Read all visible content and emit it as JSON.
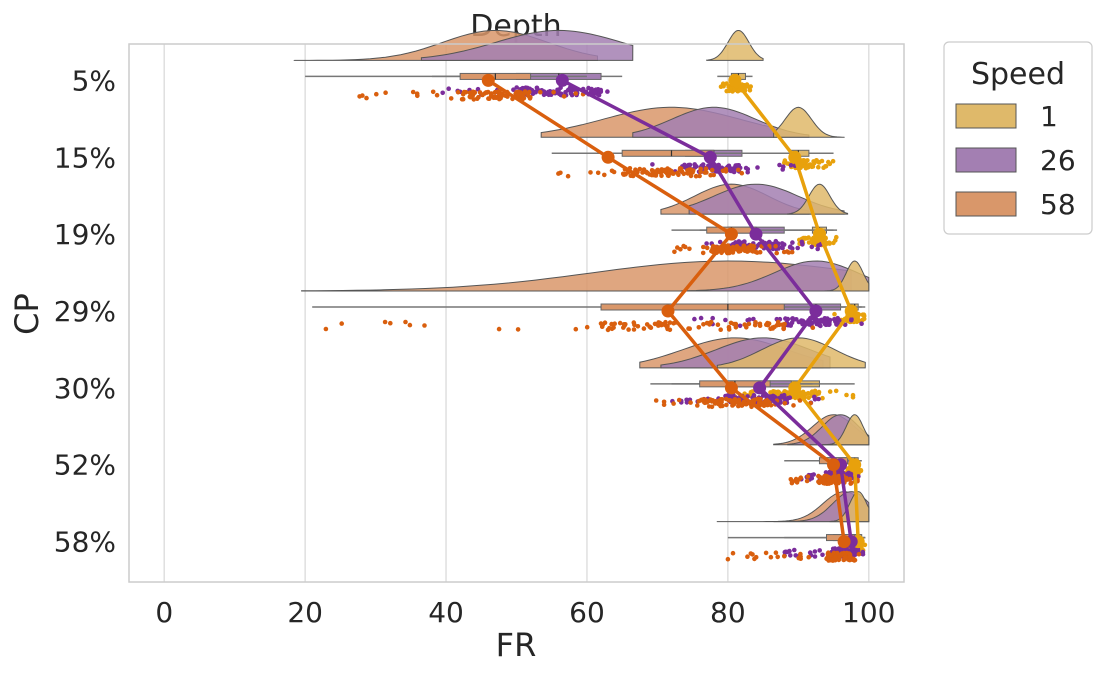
{
  "chart_data": {
    "type": "raincloud",
    "title": "Depth",
    "xlabel": "FR",
    "ylabel": "CP",
    "xlim": [
      -5,
      105
    ],
    "xticks": [
      0,
      20,
      40,
      60,
      80,
      100
    ],
    "categories": [
      "5%",
      "15%",
      "19%",
      "29%",
      "30%",
      "52%",
      "58%"
    ],
    "legend": {
      "title": "Speed",
      "position": "outside-right",
      "entries": [
        "1",
        "26",
        "58"
      ]
    },
    "colors": {
      "1": "#e8a10c",
      "26": "#7b2d9b",
      "58": "#d95f0e",
      "1_fill": "#dfb96a",
      "26_fill": "#a37fb2",
      "58_fill": "#d9976a"
    },
    "series": [
      {
        "name": "1",
        "means": [
          81,
          89.5,
          93,
          97.5,
          89.5,
          98,
          98.5
        ],
        "boxes": [
          [
            78.5,
            80.5,
            81.5,
            82.5,
            83.5
          ],
          [
            88,
            89,
            90,
            91.5,
            95
          ],
          [
            90,
            92,
            93,
            94,
            95.5
          ],
          [
            95,
            97,
            98,
            98.5,
            99.5
          ],
          [
            80,
            86,
            90,
            93,
            98
          ],
          [
            95,
            97,
            98,
            98.5,
            99
          ],
          [
            96,
            98,
            98.5,
            99,
            99.5
          ]
        ]
      },
      {
        "name": "26",
        "means": [
          56.5,
          77.5,
          84,
          92.5,
          84.5,
          96,
          97.5
        ],
        "boxes": [
          [
            38,
            50,
            56,
            62,
            65
          ],
          [
            68,
            74,
            78,
            82,
            90
          ],
          [
            76,
            80,
            84,
            88,
            95
          ],
          [
            75,
            88,
            92.5,
            96,
            99
          ],
          [
            72,
            80,
            85,
            89,
            93
          ],
          [
            90,
            94,
            96,
            97.5,
            99
          ],
          [
            88,
            95,
            97.5,
            98.5,
            99.5
          ]
        ]
      },
      {
        "name": "58",
        "means": [
          46,
          63,
          80.5,
          71.5,
          80.5,
          95,
          96.5
        ],
        "boxes": [
          [
            20,
            42,
            47,
            52,
            60
          ],
          [
            55,
            65,
            72,
            78,
            85
          ],
          [
            72,
            77,
            80.5,
            84,
            90
          ],
          [
            21,
            62,
            80,
            88,
            96
          ],
          [
            69,
            76,
            81,
            86,
            92
          ],
          [
            88,
            93,
            95,
            97,
            98.5
          ],
          [
            80,
            94,
            96.5,
            98,
            99.5
          ]
        ]
      }
    ]
  }
}
